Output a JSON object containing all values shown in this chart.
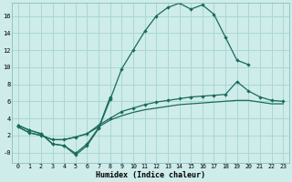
{
  "xlabel": "Humidex (Indice chaleur)",
  "bg_color": "#ceecea",
  "grid_color": "#a8d8d4",
  "line_color": "#1a6b5a",
  "xlim": [
    -0.5,
    23.5
  ],
  "ylim": [
    -1.2,
    17.5
  ],
  "xticks": [
    0,
    1,
    2,
    3,
    4,
    5,
    6,
    7,
    8,
    9,
    10,
    11,
    12,
    13,
    14,
    15,
    16,
    17,
    18,
    19,
    20,
    21,
    22,
    23
  ],
  "yticks": [
    0,
    2,
    4,
    6,
    8,
    10,
    12,
    14,
    16
  ],
  "ytick_labels": [
    "-0",
    "2",
    "4",
    "6",
    "8",
    "10",
    "12",
    "14",
    "16"
  ],
  "line1_x": [
    0,
    1,
    2,
    3,
    4,
    5,
    6,
    7,
    8,
    9,
    10,
    11,
    12,
    13,
    14,
    15,
    16,
    17,
    18,
    19,
    20
  ],
  "line1_y": [
    3.2,
    2.6,
    2.2,
    1.0,
    0.8,
    -0.3,
    0.8,
    2.8,
    6.2,
    9.8,
    12.0,
    14.2,
    16.0,
    17.0,
    17.5,
    16.8,
    17.3,
    16.2,
    13.5,
    10.8,
    10.3
  ],
  "line2_x": [
    0,
    1,
    2,
    3,
    4,
    5,
    6,
    7,
    8
  ],
  "line2_y": [
    3.2,
    2.6,
    2.2,
    1.0,
    0.8,
    -0.1,
    1.0,
    2.9,
    6.5
  ],
  "line3_x": [
    0,
    1,
    2,
    3,
    4,
    5,
    6,
    7,
    8,
    9,
    10,
    11,
    12,
    13,
    14,
    15,
    16,
    17,
    18,
    19,
    20,
    21,
    22,
    23
  ],
  "line3_y": [
    3.0,
    2.3,
    2.0,
    1.5,
    1.5,
    1.8,
    2.2,
    3.2,
    4.0,
    4.8,
    5.2,
    5.6,
    5.9,
    6.1,
    6.3,
    6.5,
    6.6,
    6.7,
    6.8,
    8.3,
    7.2,
    6.5,
    6.1,
    6.0
  ],
  "line4_x": [
    0,
    1,
    2,
    3,
    4,
    5,
    6,
    7,
    8,
    9,
    10,
    11,
    12,
    13,
    14,
    15,
    16,
    17,
    18,
    19,
    20,
    21,
    22,
    23
  ],
  "line4_y": [
    3.0,
    2.3,
    2.0,
    1.5,
    1.5,
    1.8,
    2.2,
    3.0,
    3.8,
    4.3,
    4.7,
    5.0,
    5.2,
    5.4,
    5.6,
    5.7,
    5.8,
    5.9,
    6.0,
    6.1,
    6.1,
    5.9,
    5.7,
    5.7
  ]
}
